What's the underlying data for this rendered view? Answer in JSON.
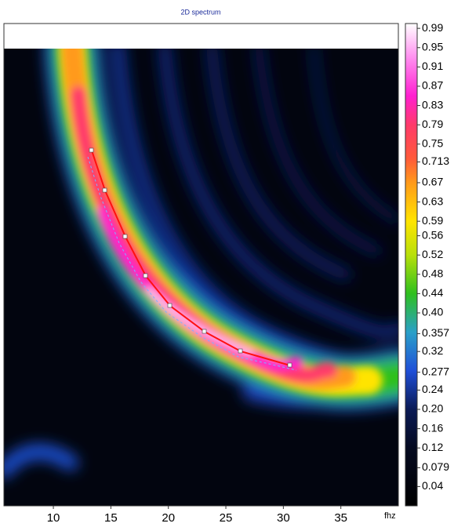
{
  "chart_data": {
    "type": "heatmap",
    "title": "2D spectrum",
    "xlabel": "fhz",
    "xlim": [
      5.7,
      40
    ],
    "xticks": [
      10,
      15,
      20,
      25,
      30,
      35
    ],
    "colorbar": {
      "clim": [
        0,
        1
      ],
      "ticks": [
        0.99,
        0.95,
        0.91,
        0.87,
        0.83,
        0.79,
        0.75,
        0.713,
        0.67,
        0.63,
        0.59,
        0.56,
        0.52,
        0.48,
        0.44,
        {
          "value": 0.4,
          "label": "0.40"
        },
        0.357,
        {
          "value": 0.32,
          "label": "0.32"
        },
        0.277,
        {
          "value": 0.24,
          "label": "0.24"
        },
        {
          "value": 0.2,
          "label": "0.20"
        },
        {
          "value": 0.16,
          "label": "0.16"
        },
        {
          "value": 0.12,
          "label": "0.12"
        },
        0.079,
        {
          "value": 0.04,
          "label": "0.04"
        }
      ]
    }
  }
}
